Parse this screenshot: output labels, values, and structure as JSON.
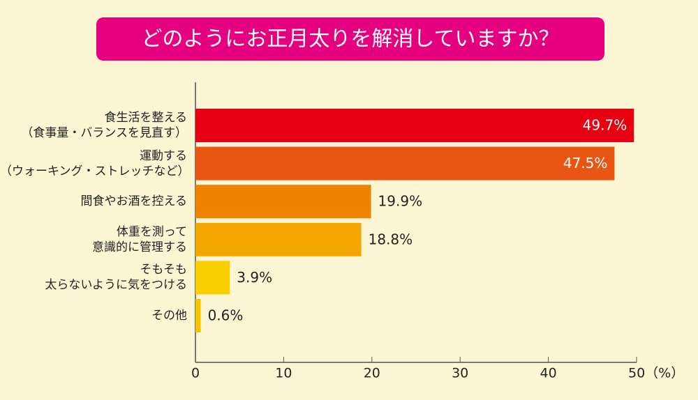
{
  "chart_data": {
    "type": "bar",
    "orientation": "horizontal",
    "title": "どのようにお正月太りを解消していますか？",
    "categories": [
      "食生活を整える\n（食事量・バランスを見直す）",
      "運動する\n（ウォーキング・ストレッチなど）",
      "間食やお酒を控える",
      "体重を測って\n意識的に管理する",
      "そもそも\n太らないように気をつける",
      "その他"
    ],
    "values": [
      49.7,
      47.5,
      19.9,
      18.8,
      3.9,
      0.6
    ],
    "value_labels": [
      "49.7%",
      "47.5%",
      "19.9%",
      "18.8%",
      "3.9%",
      "0.6%"
    ],
    "colors": [
      "#e60012",
      "#e95513",
      "#ee8300",
      "#f3a700",
      "#f9cf00",
      "#f5c400"
    ],
    "xlim": [
      0,
      50
    ],
    "xticks": [
      0,
      10,
      20,
      30,
      40,
      {
        "value": 50,
        "label": "50（%）"
      }
    ]
  }
}
